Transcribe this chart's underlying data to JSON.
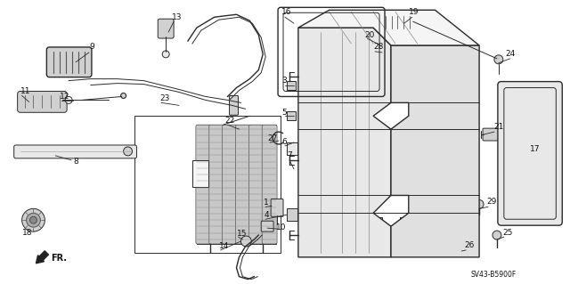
{
  "bg_color": "#ffffff",
  "line_color": "#2a2a2a",
  "label_color": "#111111",
  "figsize": [
    6.4,
    3.19
  ],
  "dpi": 100,
  "diagram_code": "SV43-B5900F",
  "fr_label": "FR.",
  "gray_fill": "#d0d0d0",
  "light_fill": "#e8e8e8",
  "white_fill": "#f5f5f5"
}
